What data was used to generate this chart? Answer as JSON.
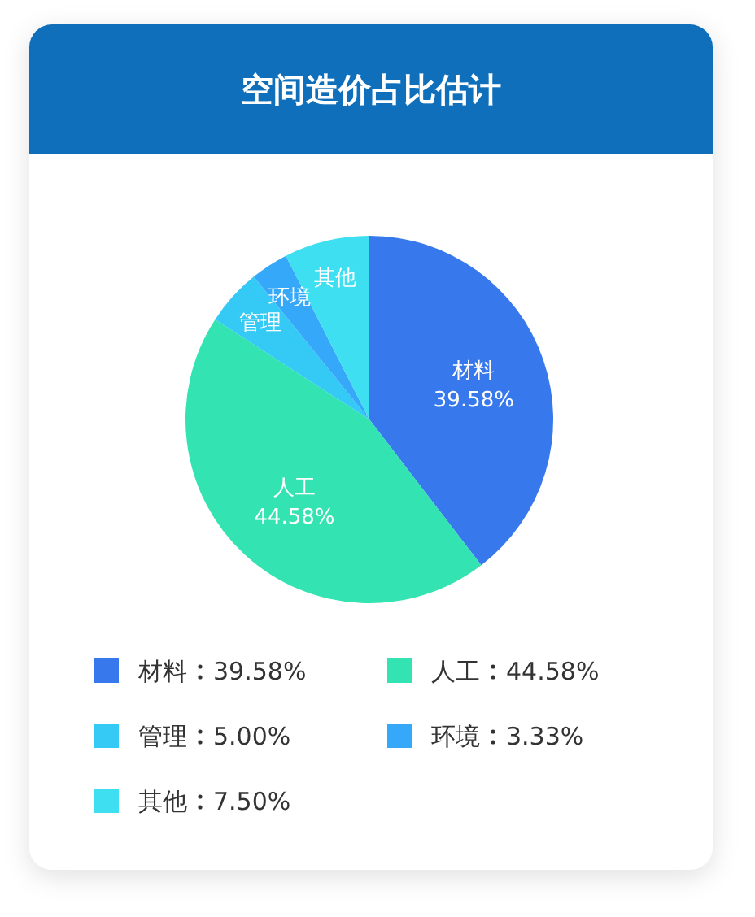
{
  "chart_data": {
    "type": "pie",
    "title": "空间造价占比估计",
    "categories": [
      "材料",
      "人工",
      "管理",
      "环境",
      "其他"
    ],
    "values": [
      39.58,
      44.58,
      5.0,
      3.33,
      7.5
    ],
    "value_labels": [
      "39.58%",
      "44.58%",
      "5.00%",
      "3.33%",
      "7.50%"
    ],
    "colors": [
      "#3779ec",
      "#33e3b1",
      "#35c9f5",
      "#35a8fa",
      "#3ddff0"
    ],
    "legend": "bottom"
  }
}
